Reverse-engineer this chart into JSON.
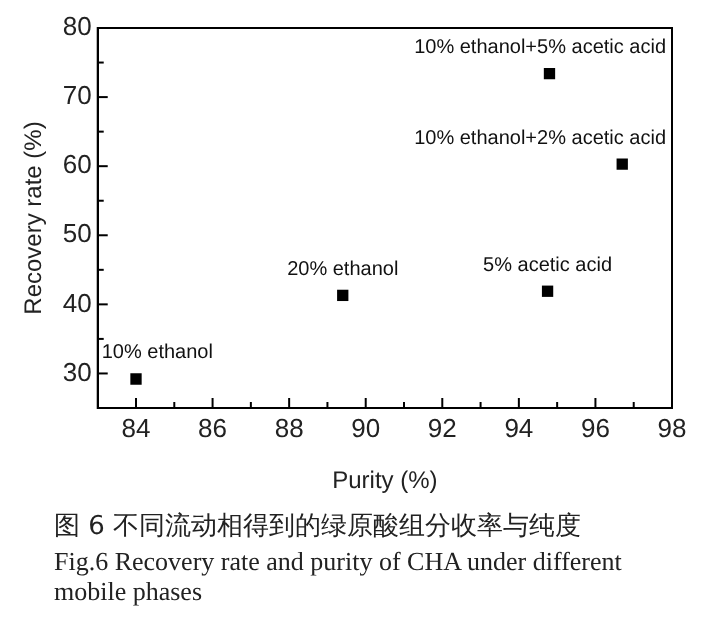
{
  "chart_data": {
    "type": "scatter",
    "xlabel": "Purity (%)",
    "ylabel": "Recovery rate (%)",
    "x": [
      84,
      89.4,
      94.75,
      94.8,
      96.7
    ],
    "series": [
      {
        "color": "#000000",
        "values": [
          29.2,
          41.3,
          41.9,
          73.4,
          60.3
        ]
      }
    ],
    "xlim": [
      83,
      98
    ],
    "xticks": [
      84,
      {
        "value": 85,
        "label": null
      },
      86,
      {
        "value": 87,
        "label": null
      },
      88,
      {
        "value": 89,
        "label": null
      },
      90,
      {
        "value": 91,
        "label": null
      },
      92,
      {
        "value": 93,
        "label": null
      },
      94,
      {
        "value": 95,
        "label": null
      },
      96,
      {
        "value": 97,
        "label": null
      },
      98
    ],
    "ylim": [
      25,
      80
    ],
    "yticks": [
      30,
      {
        "value": 35,
        "label": null
      },
      40,
      {
        "value": 45,
        "label": null
      },
      50,
      {
        "value": 55,
        "label": null
      },
      60,
      {
        "value": 65,
        "label": null
      },
      70,
      {
        "value": 75,
        "label": null
      },
      80
    ],
    "grid": false,
    "legend": false,
    "marker": "square",
    "annotations": [
      {
        "text": "10% ethanol",
        "x": 84,
        "y": 29.2
      },
      {
        "text": "20% ethanol",
        "x": 89.4,
        "y": 41.3
      },
      {
        "text": "5% acetic acid",
        "x": 94.75,
        "y": 41.9
      },
      {
        "text": "10% ethanol+5% acetic acid",
        "x": 94.8,
        "y": 73.4
      },
      {
        "text": "10% ethanol+2% acetic acid",
        "x": 96.7,
        "y": 60.3
      },
      "图 6  不同流动相得到的绿原酸组分收率与纯度",
      "Fig.6 Recovery rate and purity of CHA under different mobile phases"
    ]
  }
}
